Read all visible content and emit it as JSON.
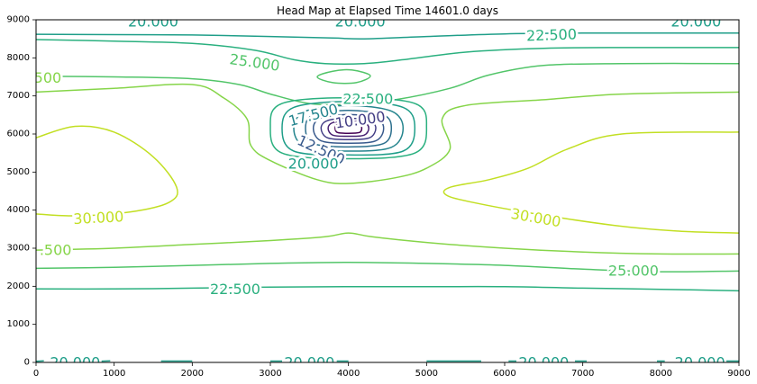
{
  "chart_data": {
    "type": "contour",
    "title": "Head Map at Elapsed Time 14601.0 days",
    "xlabel": "",
    "ylabel": "",
    "xlim": [
      0,
      9000
    ],
    "ylim": [
      0,
      9000
    ],
    "x_ticks": [
      0,
      1000,
      2000,
      3000,
      4000,
      5000,
      6000,
      7000,
      8000,
      9000
    ],
    "y_ticks": [
      0,
      1000,
      2000,
      3000,
      4000,
      5000,
      6000,
      7000,
      8000,
      9000
    ],
    "grid": false,
    "colors": {
      "c30": "#c2df23",
      "c275": "#86d549",
      "c25": "#52c569",
      "c225": "#2ab07f",
      "c20": "#1f9e89",
      "c175": "#25858e",
      "c15": "#2d708e",
      "c125": "#38598c",
      "c10": "#433e85",
      "c75": "#482173",
      "c5": "#440154"
    },
    "contour_levels": [
      5.0,
      7.5,
      10.0,
      12.5,
      15.0,
      17.5,
      20.0,
      22.5,
      25.0,
      27.5,
      30.0
    ],
    "contours": [
      {
        "level": 20.0,
        "color_key": "c20",
        "points": [
          [
            0,
            8620
          ],
          [
            1000,
            8610
          ],
          [
            2000,
            8600
          ],
          [
            3000,
            8560
          ],
          [
            3800,
            8520
          ],
          [
            4200,
            8500
          ],
          [
            5000,
            8560
          ],
          [
            6000,
            8630
          ],
          [
            7000,
            8650
          ],
          [
            8000,
            8650
          ],
          [
            9000,
            8650
          ]
        ]
      },
      {
        "level": 22.5,
        "color_key": "c225",
        "points": [
          [
            0,
            8480
          ],
          [
            1000,
            8440
          ],
          [
            2000,
            8380
          ],
          [
            2800,
            8200
          ],
          [
            3300,
            7950
          ],
          [
            3700,
            7850
          ],
          [
            4200,
            7850
          ],
          [
            4700,
            7950
          ],
          [
            5500,
            8150
          ],
          [
            6500,
            8250
          ],
          [
            7500,
            8270
          ],
          [
            9000,
            8270
          ]
        ]
      },
      {
        "level": 25.0,
        "color_key": "c25",
        "points": [
          [
            0,
            7520
          ],
          [
            1000,
            7500
          ],
          [
            2000,
            7450
          ],
          [
            2600,
            7300
          ],
          [
            3000,
            7050
          ],
          [
            3500,
            6800
          ],
          [
            4000,
            6780
          ],
          [
            4600,
            6900
          ],
          [
            5300,
            7200
          ],
          [
            5800,
            7550
          ],
          [
            6500,
            7800
          ],
          [
            7500,
            7850
          ],
          [
            9000,
            7850
          ]
        ]
      },
      {
        "level": 27.5,
        "color_key": "c275",
        "points": [
          [
            0,
            7100
          ],
          [
            1000,
            7200
          ],
          [
            2000,
            7300
          ],
          [
            2400,
            6950
          ],
          [
            2700,
            6400
          ],
          [
            2750,
            5700
          ],
          [
            3000,
            5300
          ],
          [
            3600,
            4800
          ],
          [
            4000,
            4700
          ],
          [
            4600,
            4850
          ],
          [
            5000,
            5100
          ],
          [
            5300,
            5600
          ],
          [
            5200,
            6400
          ],
          [
            5500,
            6750
          ],
          [
            6500,
            6900
          ],
          [
            7500,
            7050
          ],
          [
            9000,
            7100
          ]
        ]
      },
      {
        "level": 30.0,
        "color_key": "c30",
        "points": [
          [
            0,
            5900
          ],
          [
            500,
            6200
          ],
          [
            1000,
            6050
          ],
          [
            1500,
            5400
          ],
          [
            1800,
            4600
          ],
          [
            1700,
            4200
          ],
          [
            1200,
            3950
          ],
          [
            500,
            3850
          ],
          [
            0,
            3900
          ]
        ]
      },
      {
        "level": 30.0,
        "color_key": "c30",
        "points": [
          [
            9000,
            6050
          ],
          [
            7500,
            6000
          ],
          [
            6800,
            5600
          ],
          [
            6300,
            5100
          ],
          [
            5800,
            4800
          ],
          [
            5300,
            4600
          ],
          [
            5250,
            4400
          ],
          [
            5600,
            4200
          ],
          [
            6400,
            3900
          ],
          [
            7400,
            3600
          ],
          [
            8200,
            3450
          ],
          [
            9000,
            3400
          ]
        ]
      },
      {
        "level": 27.5,
        "color_key": "c275",
        "points": [
          [
            0,
            2950
          ],
          [
            1000,
            3000
          ],
          [
            2000,
            3100
          ],
          [
            3000,
            3200
          ],
          [
            3700,
            3300
          ],
          [
            4000,
            3400
          ],
          [
            4300,
            3300
          ],
          [
            5000,
            3150
          ],
          [
            6000,
            3000
          ],
          [
            7000,
            2900
          ],
          [
            8000,
            2850
          ],
          [
            9000,
            2850
          ]
        ]
      },
      {
        "level": 25.0,
        "color_key": "c25",
        "points": [
          [
            0,
            2470
          ],
          [
            1000,
            2500
          ],
          [
            2000,
            2550
          ],
          [
            3000,
            2600
          ],
          [
            4000,
            2630
          ],
          [
            5000,
            2600
          ],
          [
            6000,
            2550
          ],
          [
            7000,
            2450
          ],
          [
            8000,
            2380
          ],
          [
            9000,
            2400
          ]
        ]
      },
      {
        "level": 22.5,
        "color_key": "c225",
        "points": [
          [
            0,
            1930
          ],
          [
            1000,
            1930
          ],
          [
            2000,
            1950
          ],
          [
            3000,
            1980
          ],
          [
            4000,
            1990
          ],
          [
            5000,
            1990
          ],
          [
            6000,
            1990
          ],
          [
            7000,
            1950
          ],
          [
            8000,
            1920
          ],
          [
            9000,
            1880
          ]
        ]
      },
      {
        "level": 25.0,
        "color_key": "c25",
        "closed": true,
        "points": [
          [
            3600,
            7500
          ],
          [
            3800,
            7650
          ],
          [
            4050,
            7680
          ],
          [
            4280,
            7530
          ],
          [
            4100,
            7350
          ],
          [
            3800,
            7350
          ]
        ]
      },
      {
        "level": 22.5,
        "color_key": "c225",
        "closed": true,
        "points": [
          [
            3000,
            6200
          ],
          [
            3150,
            6800
          ],
          [
            4000,
            6950
          ],
          [
            4850,
            6800
          ],
          [
            5000,
            6200
          ],
          [
            4850,
            5500
          ],
          [
            4000,
            5350
          ],
          [
            3150,
            5500
          ]
        ]
      },
      {
        "level": 20.0,
        "color_key": "c20",
        "closed": true,
        "points": [
          [
            3150,
            6150
          ],
          [
            3300,
            6700
          ],
          [
            4000,
            6850
          ],
          [
            4700,
            6700
          ],
          [
            4850,
            6150
          ],
          [
            4700,
            5550
          ],
          [
            4000,
            5450
          ],
          [
            3300,
            5550
          ]
        ]
      },
      {
        "level": 17.5,
        "color_key": "c175",
        "closed": true,
        "points": [
          [
            3300,
            6150
          ],
          [
            3450,
            6600
          ],
          [
            4000,
            6750
          ],
          [
            4550,
            6600
          ],
          [
            4700,
            6150
          ],
          [
            4550,
            5650
          ],
          [
            4000,
            5550
          ],
          [
            3450,
            5650
          ]
        ]
      },
      {
        "level": 15.0,
        "color_key": "c15",
        "closed": true,
        "points": [
          [
            3450,
            6150
          ],
          [
            3550,
            6500
          ],
          [
            4000,
            6620
          ],
          [
            4450,
            6500
          ],
          [
            4550,
            6150
          ],
          [
            4450,
            5750
          ],
          [
            4000,
            5660
          ],
          [
            3550,
            5750
          ]
        ]
      },
      {
        "level": 12.5,
        "color_key": "c125",
        "closed": true,
        "points": [
          [
            3550,
            6150
          ],
          [
            3650,
            6420
          ],
          [
            4000,
            6510
          ],
          [
            4350,
            6420
          ],
          [
            4450,
            6150
          ],
          [
            4350,
            5820
          ],
          [
            4000,
            5760
          ],
          [
            3650,
            5820
          ]
        ]
      },
      {
        "level": 10.0,
        "color_key": "c10",
        "closed": true,
        "points": [
          [
            3650,
            6150
          ],
          [
            3730,
            6350
          ],
          [
            4000,
            6410
          ],
          [
            4270,
            6350
          ],
          [
            4350,
            6150
          ],
          [
            4270,
            5900
          ],
          [
            4000,
            5850
          ],
          [
            3730,
            5900
          ]
        ]
      },
      {
        "level": 7.5,
        "color_key": "c75",
        "closed": true,
        "points": [
          [
            3740,
            6150
          ],
          [
            3800,
            6300
          ],
          [
            4000,
            6330
          ],
          [
            4200,
            6300
          ],
          [
            4260,
            6150
          ],
          [
            4200,
            5970
          ],
          [
            4000,
            5940
          ],
          [
            3800,
            5970
          ]
        ]
      },
      {
        "level": 5.0,
        "color_key": "c5",
        "closed": true,
        "points": [
          [
            3830,
            6150
          ],
          [
            3860,
            6250
          ],
          [
            4000,
            6260
          ],
          [
            4140,
            6250
          ],
          [
            4170,
            6150
          ],
          [
            4140,
            6040
          ],
          [
            4000,
            6020
          ],
          [
            3860,
            6040
          ]
        ]
      },
      {
        "level": 20.0,
        "color_key": "c20",
        "points": [
          [
            0,
            30
          ],
          [
            100,
            40
          ]
        ]
      },
      {
        "level": 20.0,
        "color_key": "c20",
        "points": [
          [
            800,
            30
          ],
          [
            950,
            40
          ]
        ]
      },
      {
        "level": 20.0,
        "color_key": "c20",
        "points": [
          [
            1600,
            35
          ],
          [
            2000,
            35
          ]
        ]
      },
      {
        "level": 20.0,
        "color_key": "c20",
        "points": [
          [
            3000,
            35
          ],
          [
            3150,
            35
          ]
        ]
      },
      {
        "level": 20.0,
        "color_key": "c20",
        "points": [
          [
            3850,
            35
          ],
          [
            4000,
            35
          ]
        ]
      },
      {
        "level": 20.0,
        "color_key": "c20",
        "points": [
          [
            5000,
            35
          ],
          [
            5700,
            35
          ]
        ]
      },
      {
        "level": 20.0,
        "color_key": "c20",
        "points": [
          [
            6050,
            35
          ],
          [
            6150,
            35
          ]
        ]
      },
      {
        "level": 20.0,
        "color_key": "c20",
        "points": [
          [
            6900,
            35
          ],
          [
            7050,
            35
          ]
        ]
      },
      {
        "level": 20.0,
        "color_key": "c20",
        "points": [
          [
            7950,
            35
          ],
          [
            8050,
            35
          ]
        ]
      },
      {
        "level": 20.0,
        "color_key": "c20",
        "points": [
          [
            8800,
            35
          ],
          [
            9000,
            35
          ]
        ]
      }
    ],
    "contour_labels": [
      {
        "text": "20.000",
        "x": 1500,
        "y": 8950,
        "color_key": "c20",
        "rotation": 0
      },
      {
        "text": "20.000",
        "x": 4150,
        "y": 8950,
        "color_key": "c20",
        "rotation": 0
      },
      {
        "text": "20.000",
        "x": 8450,
        "y": 8950,
        "color_key": "c20",
        "rotation": 0
      },
      {
        "text": "22.500",
        "x": 6600,
        "y": 8600,
        "color_key": "c225",
        "rotation": -2
      },
      {
        "text": "25.000",
        "x": 2800,
        "y": 7880,
        "color_key": "c25",
        "rotation": 8
      },
      {
        "text": ".500",
        "x": 120,
        "y": 7480,
        "color_key": "c275",
        "rotation": 0
      },
      {
        "text": "22.500",
        "x": 4250,
        "y": 6920,
        "color_key": "c225",
        "rotation": 0
      },
      {
        "text": "17.500",
        "x": 3550,
        "y": 6500,
        "color_key": "c175",
        "rotation": -15
      },
      {
        "text": "10.000",
        "x": 4150,
        "y": 6370,
        "color_key": "c10",
        "rotation": -8
      },
      {
        "text": "12.500",
        "x": 3650,
        "y": 5580,
        "color_key": "c125",
        "rotation": 25
      },
      {
        "text": "20.000",
        "x": 3550,
        "y": 5220,
        "color_key": "c20",
        "rotation": 0
      },
      {
        "text": "30.000",
        "x": 800,
        "y": 3800,
        "color_key": "c30",
        "rotation": -3
      },
      {
        "text": "30.000",
        "x": 6400,
        "y": 3800,
        "color_key": "c30",
        "rotation": 10
      },
      {
        "text": ".500",
        "x": 250,
        "y": 2950,
        "color_key": "c275",
        "rotation": 0
      },
      {
        "text": "25.000",
        "x": 7650,
        "y": 2410,
        "color_key": "c25",
        "rotation": 0
      },
      {
        "text": "22.500",
        "x": 2550,
        "y": 1930,
        "color_key": "c225",
        "rotation": 0
      },
      {
        "text": "20.000",
        "x": 500,
        "y": 5,
        "color_key": "c20",
        "rotation": 0
      },
      {
        "text": "20.000",
        "x": 3500,
        "y": 5,
        "color_key": "c20",
        "rotation": 0
      },
      {
        "text": "20.000",
        "x": 6500,
        "y": 5,
        "color_key": "c20",
        "rotation": 0
      },
      {
        "text": "20.000",
        "x": 8500,
        "y": 5,
        "color_key": "c20",
        "rotation": 0
      }
    ]
  }
}
